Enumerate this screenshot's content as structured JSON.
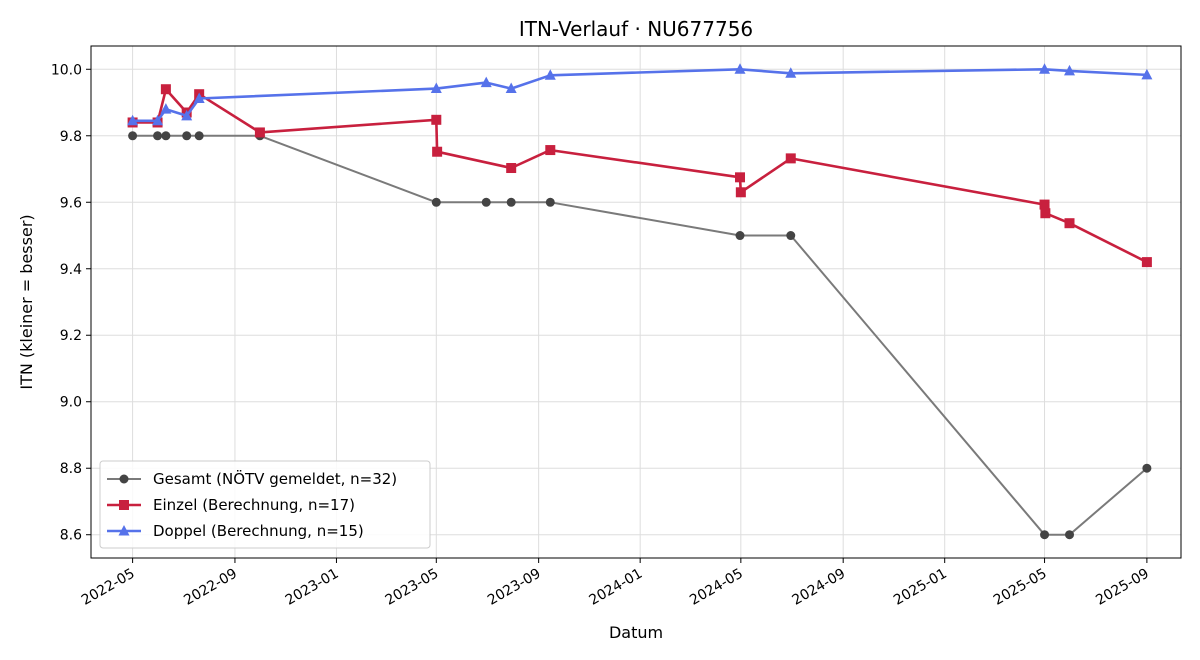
{
  "chart_data": {
    "type": "line",
    "title": "ITN-Verlauf · NU677756",
    "xlabel": "Datum",
    "ylabel": "ITN  (kleiner = besser)",
    "xlim": [
      "2022-03-12",
      "2025-10-12"
    ],
    "ylim": [
      8.53,
      10.07
    ],
    "x_ticks": [
      "2022-05",
      "2022-09",
      "2023-01",
      "2023-05",
      "2023-09",
      "2024-01",
      "2024-05",
      "2024-09",
      "2025-01",
      "2025-05",
      "2025-09"
    ],
    "y_ticks": [
      "8.6",
      "8.8",
      "9.0",
      "9.2",
      "9.4",
      "9.6",
      "9.8",
      "10.0"
    ],
    "grid": true,
    "legend_position": "lower-left",
    "series": [
      {
        "name": "Gesamt (NÖTV gemeldet, n=32)",
        "color": "#444444",
        "line_color": "#7a7a7a",
        "marker": "circle",
        "points": [
          [
            "2022-05-01",
            9.8
          ],
          [
            "2022-05-31",
            9.8
          ],
          [
            "2022-06-10",
            9.8
          ],
          [
            "2022-07-05",
            9.8
          ],
          [
            "2022-07-20",
            9.8
          ],
          [
            "2022-10-01",
            9.8
          ],
          [
            "2023-05-01",
            9.6
          ],
          [
            "2023-06-30",
            9.6
          ],
          [
            "2023-07-30",
            9.6
          ],
          [
            "2023-09-15",
            9.6
          ],
          [
            "2024-04-30",
            9.5
          ],
          [
            "2024-06-30",
            9.5
          ],
          [
            "2025-05-01",
            8.6
          ],
          [
            "2025-05-31",
            8.6
          ],
          [
            "2025-09-01",
            8.8
          ]
        ]
      },
      {
        "name": "Einzel (Berechnung, n=17)",
        "color": "#c8203e",
        "line_color": "#c8203e",
        "marker": "square",
        "points": [
          [
            "2022-05-01",
            9.84
          ],
          [
            "2022-05-31",
            9.84
          ],
          [
            "2022-06-10",
            9.94
          ],
          [
            "2022-07-05",
            9.87
          ],
          [
            "2022-07-20",
            9.925
          ],
          [
            "2022-10-01",
            9.81
          ],
          [
            "2023-05-01",
            9.848
          ],
          [
            "2023-05-02",
            9.752
          ],
          [
            "2023-07-30",
            9.703
          ],
          [
            "2023-09-15",
            9.757
          ],
          [
            "2024-04-30",
            9.675
          ],
          [
            "2024-05-01",
            9.63
          ],
          [
            "2024-06-30",
            9.732
          ],
          [
            "2025-05-01",
            9.593
          ],
          [
            "2025-05-02",
            9.567
          ],
          [
            "2025-05-31",
            9.537
          ],
          [
            "2025-09-01",
            9.42
          ]
        ]
      },
      {
        "name": "Doppel (Berechnung, n=15)",
        "color": "#5672ea",
        "line_color": "#5672ea",
        "marker": "triangle",
        "points": [
          [
            "2022-05-01",
            9.845
          ],
          [
            "2022-05-31",
            9.845
          ],
          [
            "2022-06-10",
            9.88
          ],
          [
            "2022-07-05",
            9.86
          ],
          [
            "2022-07-20",
            9.912
          ],
          [
            "2023-05-01",
            9.942
          ],
          [
            "2023-06-30",
            9.96
          ],
          [
            "2023-07-30",
            9.942
          ],
          [
            "2023-09-15",
            9.982
          ],
          [
            "2024-04-30",
            10.0
          ],
          [
            "2024-06-30",
            9.988
          ],
          [
            "2025-05-01",
            10.0
          ],
          [
            "2025-05-31",
            9.995
          ],
          [
            "2025-09-01",
            9.983
          ]
        ]
      }
    ]
  }
}
